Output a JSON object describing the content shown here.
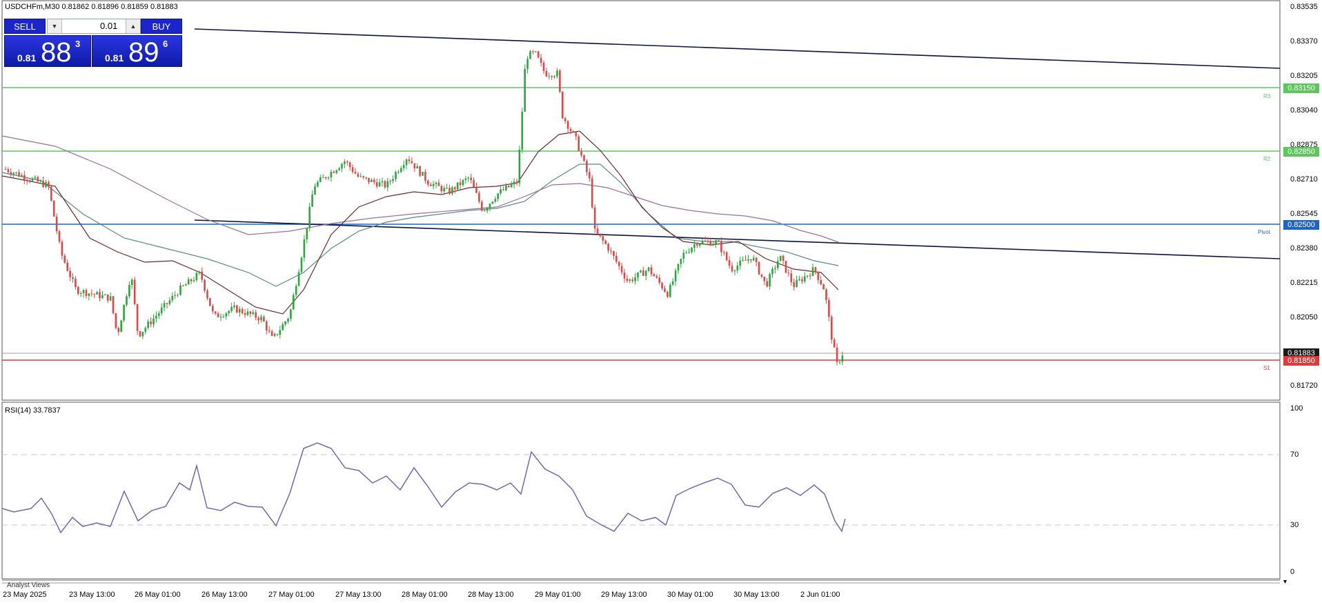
{
  "header": {
    "symbol_line": "USDCHFm,M30  0.81862 0.81896 0.81859 0.81883"
  },
  "trade_panel": {
    "sell_label": "SELL",
    "buy_label": "BUY",
    "lot_value": "0.01",
    "sell_lead": "0.81",
    "sell_big": "88",
    "sell_sup": "3",
    "buy_lead": "0.81",
    "buy_big": "89",
    "buy_sup": "6"
  },
  "price_axis": [
    "0.83535",
    "0.83370",
    "0.83205",
    "0.83040",
    "0.82875",
    "0.82710",
    "0.82545",
    "0.82380",
    "0.82215",
    "0.82050",
    "0.81720"
  ],
  "levels": {
    "r3": {
      "price": "0.83150",
      "label": "R3",
      "color": "#5ac85a"
    },
    "r2": {
      "price": "0.82850",
      "label": "R2",
      "color": "#5ac85a"
    },
    "pivot": {
      "price": "0.82500",
      "label": "Pivot",
      "color": "#1e64c8"
    },
    "s1": {
      "price": "0.81850",
      "label": "S1",
      "color": "#dc3c3c"
    },
    "current": {
      "price": "0.81883",
      "color": "#1a1a1a"
    }
  },
  "indicator": {
    "title": "RSI(14) 33.7837",
    "axis": [
      "100",
      "70",
      "30",
      "0"
    ]
  },
  "time_axis": [
    "23 May 2025",
    "23 May 13:00",
    "26 May 01:00",
    "26 May 13:00",
    "27 May 01:00",
    "27 May 13:00",
    "28 May 01:00",
    "28 May 13:00",
    "29 May 01:00",
    "29 May 13:00",
    "30 May 01:00",
    "30 May 13:00",
    "2 Jun 01:00"
  ],
  "footer": {
    "analyst_label": "Analyst Views"
  },
  "colors": {
    "bull": "#27a83a",
    "bear": "#e04646",
    "ma_fast": "#6b2a2a",
    "ma_mid": "#5a8a7c",
    "ma_slow": "#9a6ea0",
    "rsi": "#6a6ab0",
    "trendline": "#0b1240"
  },
  "chart_data": {
    "type": "line",
    "title": "USDCHFm,M30",
    "series": [
      {
        "name": "USDCHFm",
        "x": [
          "23 May 2025",
          "23 May 13:00",
          "26 May 01:00",
          "26 May 13:00",
          "27 May 01:00",
          "27 May 13:00",
          "28 May 01:00",
          "28 May 13:00",
          "29 May 01:00",
          "29 May 13:00",
          "30 May 01:00",
          "30 May 13:00",
          "2 Jun 01:00"
        ],
        "values": [
          0.8276,
          0.8218,
          0.8212,
          0.8208,
          0.8196,
          0.8272,
          0.8278,
          0.8272,
          0.8322,
          0.8239,
          0.8228,
          0.8223,
          0.8188
        ]
      },
      {
        "name": "RSI(14)",
        "values": [
          47,
          32,
          43,
          55,
          38,
          72,
          60,
          52,
          74,
          30,
          52,
          46,
          34
        ]
      }
    ],
    "ylim": [
      0.8165,
      0.8356
    ],
    "rsi_ylim": [
      0,
      100
    ],
    "grid": false
  }
}
